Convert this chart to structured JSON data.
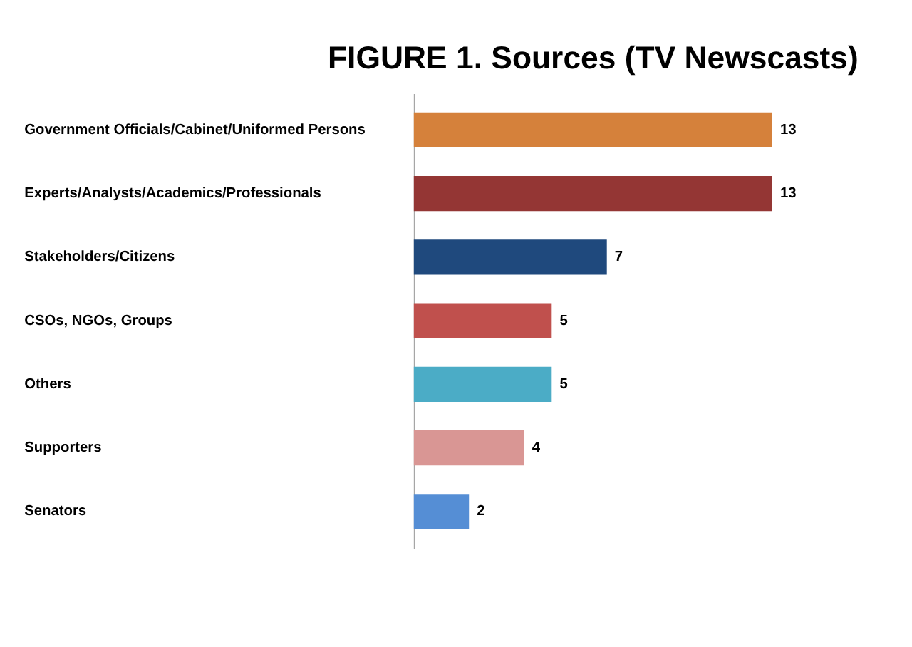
{
  "chart_data": {
    "type": "bar",
    "orientation": "horizontal",
    "title": "FIGURE 1. Sources (TV Newscasts)",
    "categories": [
      "Government Officials/Cabinet/Uniformed Persons",
      "Experts/Analysts/Academics/Professionals",
      "Stakeholders/Citizens",
      "CSOs, NGOs, Groups",
      "Others",
      "Supporters",
      "Senators"
    ],
    "values": [
      13,
      13,
      7,
      5,
      5,
      4,
      2
    ],
    "colors": [
      "#d5813b",
      "#943634",
      "#1f497d",
      "#c0504d",
      "#4bacc6",
      "#d99694",
      "#558ed5"
    ],
    "data_labels": true,
    "grid": false,
    "legend": false
  }
}
